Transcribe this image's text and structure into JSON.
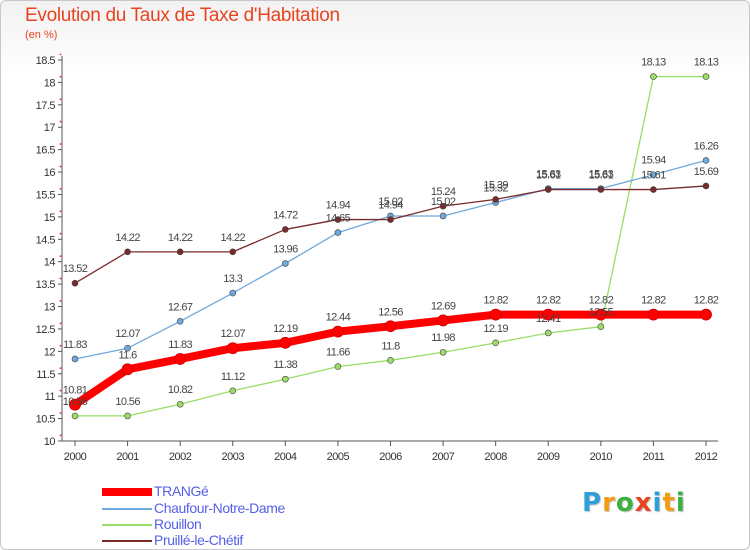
{
  "chart_data": {
    "type": "line",
    "title": "Evolution du Taux de Taxe d'Habitation",
    "subtitle": "(en %)",
    "xlabel": "",
    "ylabel": "",
    "categories": [
      "2000",
      "2001",
      "2002",
      "2003",
      "2004",
      "2005",
      "2006",
      "2007",
      "2008",
      "2009",
      "2010",
      "2011",
      "2012"
    ],
    "ylim": [
      10,
      18.5
    ],
    "yticks": [
      "10",
      "10.5",
      "11",
      "11.5",
      "12",
      "12.5",
      "13",
      "13.5",
      "14",
      "14.5",
      "15",
      "15.5",
      "16",
      "16.5",
      "17",
      "17.5",
      "18",
      "18.5"
    ],
    "grid": false,
    "legend_position": "bottom-left",
    "series": [
      {
        "name": "TRANGé",
        "color": "#ff0000",
        "values": [
          10.81,
          11.6,
          11.83,
          12.07,
          12.19,
          12.44,
          12.56,
          12.69,
          12.82,
          12.82,
          12.82,
          12.82,
          12.82
        ],
        "labels": [
          "10.81",
          "11.6",
          "11.83",
          "12.07",
          "12.19",
          "12.44",
          "12.56",
          "12.69",
          "12.82",
          "12.82",
          "12.82",
          "12.82",
          "12.82"
        ]
      },
      {
        "name": "Chaufour-Notre-Dame",
        "color": "#6fa8dc",
        "values": [
          11.83,
          12.07,
          12.67,
          13.3,
          13.96,
          14.65,
          15.02,
          15.02,
          15.32,
          15.63,
          15.63,
          15.94,
          16.26
        ],
        "labels": [
          "11.83",
          "12.07",
          "12.67",
          "13.3",
          "13.96",
          "14.65",
          "15.02",
          "15.02",
          "15.32",
          "15.63",
          "15.63",
          "15.94",
          "16.26"
        ]
      },
      {
        "name": "Rouillon",
        "color": "#99dd66",
        "values": [
          10.56,
          10.56,
          10.82,
          11.12,
          11.38,
          11.66,
          11.8,
          11.98,
          12.19,
          12.41,
          12.55,
          18.13,
          18.13
        ],
        "labels": [
          "10.56",
          "10.56",
          "10.82",
          "11.12",
          "11.38",
          "11.66",
          "11.8",
          "11.98",
          "12.19",
          "12.41",
          "12.55",
          "18.13",
          "18.13"
        ]
      },
      {
        "name": "Pruillé-le-Chétif",
        "color": "#7a2a2a",
        "values": [
          13.52,
          14.22,
          14.22,
          14.22,
          14.72,
          14.94,
          14.94,
          15.24,
          15.39,
          15.61,
          15.61,
          15.61,
          15.69
        ],
        "labels": [
          "13.52",
          "14.22",
          "14.22",
          "14.22",
          "14.72",
          "14.94",
          "14.94",
          "15.24",
          "15.39",
          "15.61",
          "15.61",
          "15.61",
          "15.69"
        ]
      }
    ]
  },
  "logo": {
    "letters": [
      "P",
      "r",
      "o",
      "x",
      "i",
      "t",
      "i"
    ],
    "colors": [
      "#2e9fd8",
      "#f39c12",
      "#3cb043",
      "#e8431e",
      "#2e9fd8",
      "#f39c12",
      "#3cb043"
    ]
  }
}
